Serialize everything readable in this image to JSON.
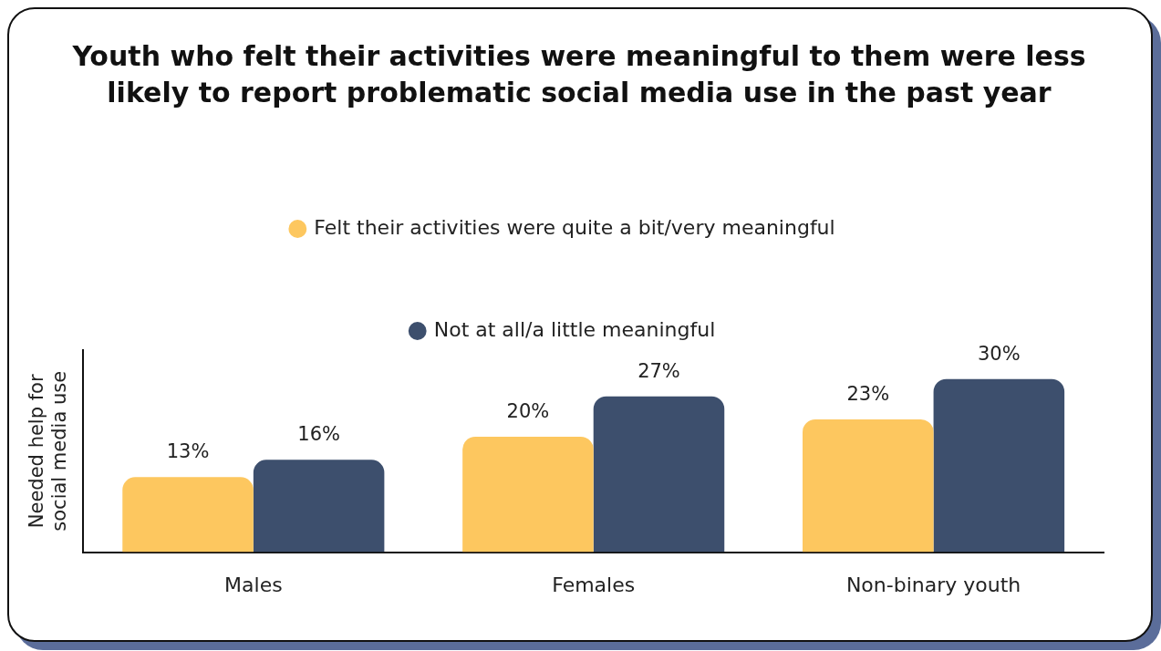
{
  "chart_data": {
    "type": "bar",
    "title": "Youth who felt their activities were meaningful to them were less likely to report problematic social media use in the past year",
    "ylabel": "Needed help for social media use",
    "categories": [
      "Males",
      "Females",
      "Non-binary youth"
    ],
    "series": [
      {
        "name": "Felt their activities were quite a bit/very meaningful",
        "color": "#fdc75f",
        "values": [
          13,
          20,
          23
        ],
        "value_labels": [
          "13%",
          "20%",
          "23%"
        ]
      },
      {
        "name": "Not at all/a little meaningful",
        "color": "#3d4f6d",
        "values": [
          16,
          27,
          30
        ],
        "value_labels": [
          "16%",
          "27%",
          "30%"
        ]
      }
    ],
    "legend": "top",
    "grid": false
  }
}
